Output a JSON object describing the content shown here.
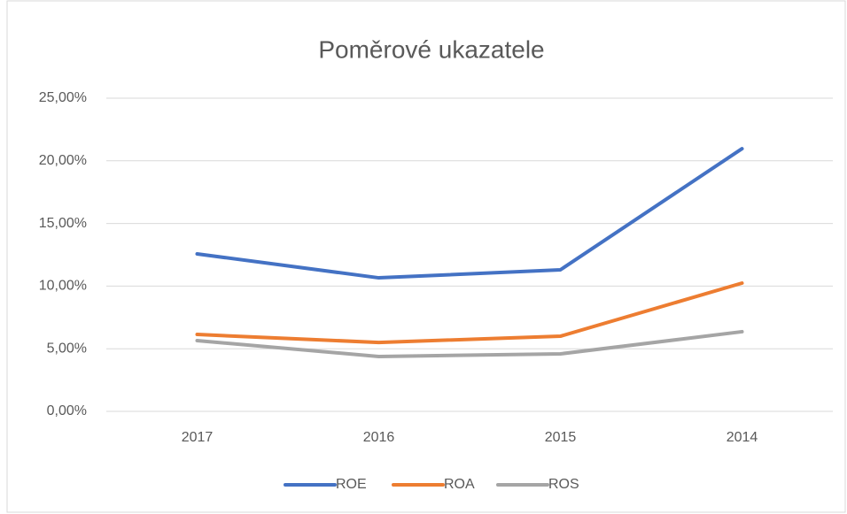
{
  "chart_data": {
    "type": "line",
    "title": "Poměrové ukazatele",
    "categories": [
      "2017",
      "2016",
      "2015",
      "2014"
    ],
    "series": [
      {
        "name": "ROE",
        "color": "#4472c4",
        "values": [
          12.57,
          10.66,
          11.3,
          20.97
        ]
      },
      {
        "name": "ROA",
        "color": "#ed7d31",
        "values": [
          6.14,
          5.5,
          6.0,
          10.24
        ]
      },
      {
        "name": "ROS",
        "color": "#a5a5a5",
        "values": [
          5.65,
          4.38,
          4.59,
          6.36
        ]
      }
    ],
    "ylim": [
      0,
      25
    ],
    "yticks": [
      {
        "value": 0,
        "label": "0,00%"
      },
      {
        "value": 5,
        "label": "5,00%"
      },
      {
        "value": 10,
        "label": "10,00%"
      },
      {
        "value": 15,
        "label": "15,00%"
      },
      {
        "value": 20,
        "label": "20,00%"
      },
      {
        "value": 25,
        "label": "25,00%"
      }
    ],
    "grid": true,
    "legend": "bottom"
  }
}
